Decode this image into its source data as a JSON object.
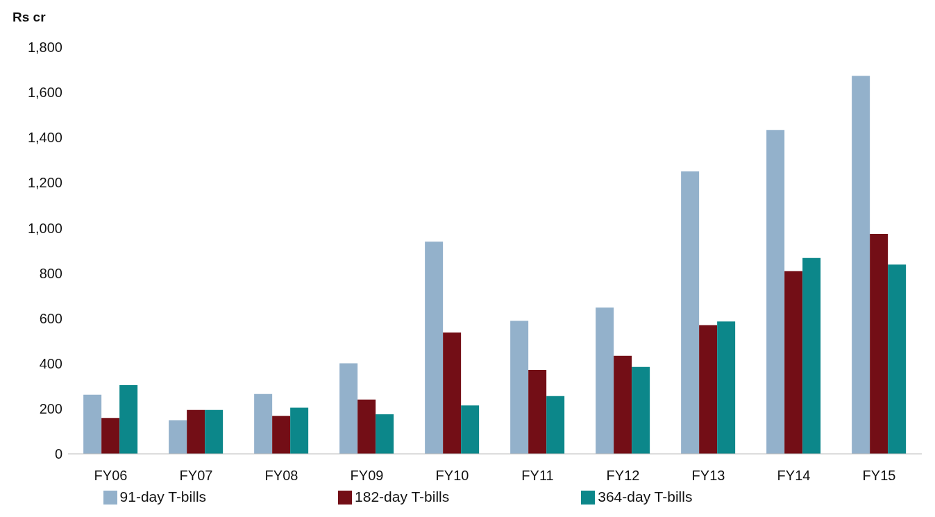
{
  "chart_data": {
    "type": "bar",
    "ylabel": "Rs cr",
    "categories": [
      "FY06",
      "FY07",
      "FY08",
      "FY09",
      "FY10",
      "FY11",
      "FY12",
      "FY13",
      "FY14",
      "FY15"
    ],
    "series": [
      {
        "name": "91-day T-bills",
        "color": "#93b1cb",
        "values": [
          262,
          149,
          265,
          401,
          939,
          589,
          647,
          1250,
          1434,
          1673
        ]
      },
      {
        "name": "182-day T-bills",
        "color": "#730e16",
        "values": [
          159,
          194,
          168,
          240,
          537,
          372,
          434,
          570,
          809,
          974
        ]
      },
      {
        "name": "364-day T-bills",
        "color": "#0c878a",
        "values": [
          304,
          194,
          204,
          175,
          214,
          256,
          385,
          586,
          867,
          838
        ]
      }
    ],
    "ylim": [
      0,
      1800
    ],
    "yticks": [
      0,
      200,
      400,
      600,
      800,
      {
        "value": 1000,
        "label": "1,000"
      },
      {
        "value": 1200,
        "label": "1,200"
      },
      {
        "value": 1400,
        "label": "1,400"
      },
      {
        "value": 1600,
        "label": "1,600"
      },
      {
        "value": 1800,
        "label": "1,800"
      }
    ],
    "grid": false,
    "legend": "bottom"
  }
}
